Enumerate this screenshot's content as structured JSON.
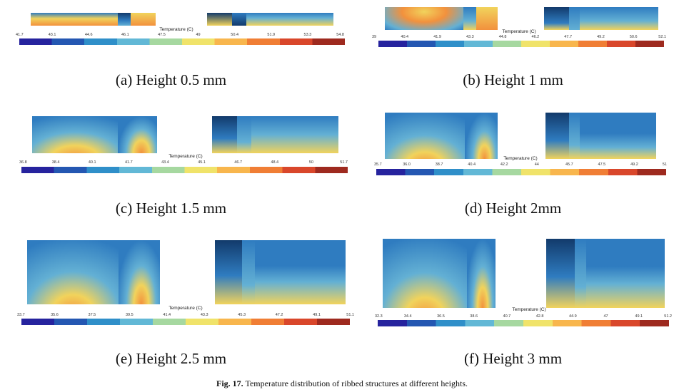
{
  "colorbar_label": "Temperature (C)",
  "colors": {
    "gradient": [
      "#26239e",
      "#2457b2",
      "#2f8fc9",
      "#62b8d6",
      "#a6d8a0",
      "#f0e36a",
      "#f8b64d",
      "#f07e35",
      "#d9472b",
      "#9e2a1f"
    ],
    "cool_dark": "#123a6b",
    "cool": "#2f7cc0",
    "mid": "#63b0d4",
    "warm": "#f1d35c",
    "hot": "#f2913d"
  },
  "panels": [
    {
      "caption": "(a) Height 0.5 mm",
      "ticks": [
        "41.7",
        "43.1",
        "44.6",
        "46.1",
        "47.5",
        "49",
        "50.4",
        "51.9",
        "53.3",
        "54.8"
      ]
    },
    {
      "caption": "(b) Height 1 mm",
      "ticks": [
        "39",
        "40.4",
        "41.9",
        "43.3",
        "44.8",
        "46.2",
        "47.7",
        "49.2",
        "50.6",
        "52.1"
      ]
    },
    {
      "caption": "(c) Height 1.5 mm",
      "ticks": [
        "36.8",
        "38.4",
        "40.1",
        "41.7",
        "43.4",
        "45.1",
        "46.7",
        "48.4",
        "50",
        "51.7"
      ]
    },
    {
      "caption": "(d) Height 2mm",
      "ticks": [
        "35.7",
        "36.0",
        "38.7",
        "40.4",
        "42.2",
        "44",
        "45.7",
        "47.5",
        "49.2",
        "51"
      ]
    },
    {
      "caption": "(e) Height 2.5 mm",
      "ticks": [
        "33.7",
        "35.6",
        "37.5",
        "39.5",
        "41.4",
        "43.3",
        "45.3",
        "47.2",
        "49.1",
        "51.1"
      ]
    },
    {
      "caption": "(f) Height 3 mm",
      "ticks": [
        "32.3",
        "34.4",
        "36.5",
        "38.6",
        "40.7",
        "42.8",
        "44.9",
        "47",
        "49.1",
        "51.2"
      ]
    }
  ],
  "figure_caption": {
    "label": "Fig. 17.",
    "text": "Temperature distribution of ribbed structures at different heights."
  }
}
